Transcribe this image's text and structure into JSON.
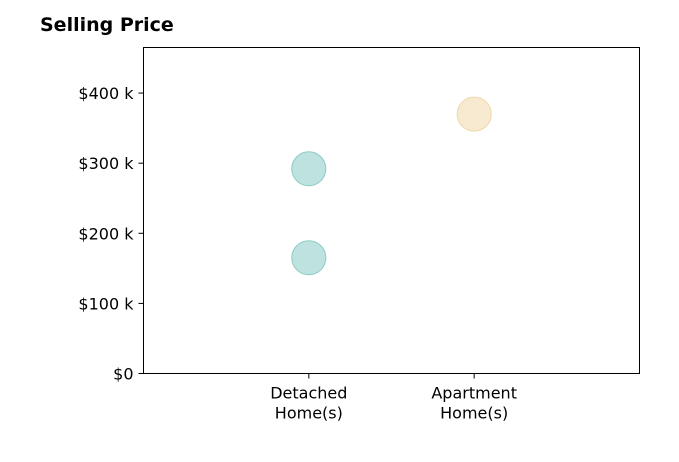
{
  "chart_data": {
    "type": "scatter",
    "title": "Selling Price",
    "xlabel": "",
    "ylabel": "",
    "categories": [
      [
        "Detached",
        "Home(s)"
      ],
      [
        "Apartment",
        "Home(s)"
      ]
    ],
    "xlim": [
      -1,
      2
    ],
    "ylim": [
      0,
      465000
    ],
    "yticks": [
      0,
      100000,
      200000,
      300000,
      400000
    ],
    "ytick_labels": [
      "$0",
      "$100 k",
      "$200 k",
      "$300 k",
      "$400 k"
    ],
    "grid": false,
    "points": [
      {
        "category": 0,
        "value": 165000,
        "color": "#a8d8d4"
      },
      {
        "category": 0,
        "value": 292000,
        "color": "#a8d8d4"
      },
      {
        "category": 1,
        "value": 370000,
        "color": "#f5e3c0"
      }
    ],
    "colors": {
      "detached": "#a8d8d4",
      "detached_edge": "#8ccbc4",
      "apartment": "#f5e3c0",
      "apartment_edge": "#eed6a8"
    }
  }
}
